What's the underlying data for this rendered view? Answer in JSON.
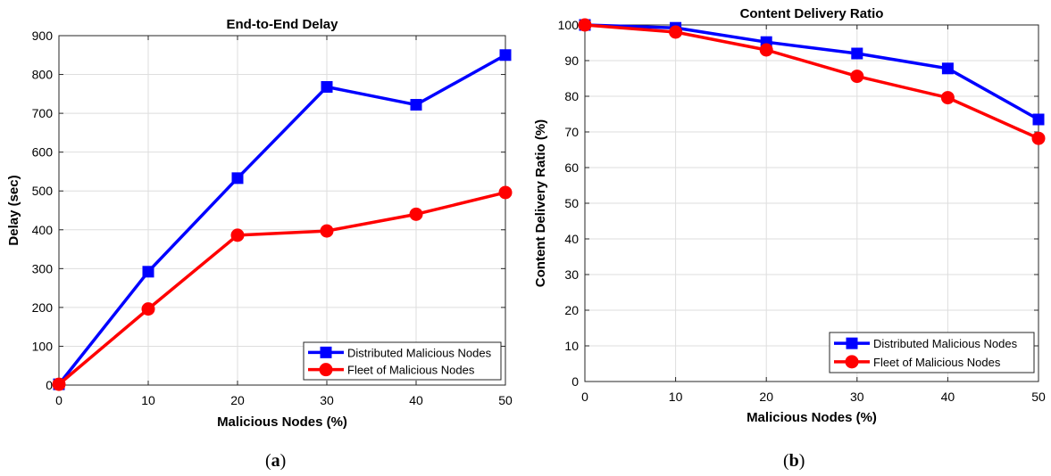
{
  "chart_data": [
    {
      "type": "line",
      "title": "End-to-End Delay",
      "xlabel": "Malicious Nodes (%)",
      "ylabel": "Delay (sec)",
      "x": [
        0,
        10,
        20,
        30,
        40,
        50
      ],
      "xlim": [
        0,
        50
      ],
      "ylim": [
        0,
        900
      ],
      "xticks": [
        0,
        10,
        20,
        30,
        40,
        50
      ],
      "yticks": [
        0,
        100,
        200,
        300,
        400,
        500,
        600,
        700,
        800,
        900
      ],
      "grid": true,
      "legend_position": "bottom-right",
      "series": [
        {
          "name": "Distributed Malicious Nodes",
          "color": "#0000ff",
          "marker": "square",
          "values": [
            2,
            292,
            533,
            768,
            722,
            850
          ]
        },
        {
          "name": "Fleet of Malicious Nodes",
          "color": "#ff0000",
          "marker": "circle",
          "values": [
            2,
            196,
            386,
            397,
            440,
            496
          ]
        }
      ],
      "caption": {
        "open": "(",
        "letter": "a",
        "close": ")"
      }
    },
    {
      "type": "line",
      "title": "Content Delivery Ratio",
      "xlabel": "Malicious Nodes (%)",
      "ylabel": "Content Delivery Ratio (%)",
      "x": [
        0,
        10,
        20,
        30,
        40,
        50
      ],
      "xlim": [
        0,
        50
      ],
      "ylim": [
        0,
        100
      ],
      "xticks": [
        0,
        10,
        20,
        30,
        40,
        50
      ],
      "yticks": [
        0,
        10,
        20,
        30,
        40,
        50,
        60,
        70,
        80,
        90,
        100
      ],
      "grid": true,
      "legend_position": "bottom-right",
      "series": [
        {
          "name": "Distributed Malicious Nodes",
          "color": "#0000ff",
          "marker": "square",
          "values": [
            100,
            99.2,
            95.2,
            92,
            87.8,
            73.5
          ]
        },
        {
          "name": "Fleet of Malicious Nodes",
          "color": "#ff0000",
          "marker": "circle",
          "values": [
            100,
            98,
            93,
            85.6,
            79.6,
            68.2
          ]
        }
      ],
      "caption": {
        "open": "(",
        "letter": "b",
        "close": ")"
      }
    }
  ]
}
